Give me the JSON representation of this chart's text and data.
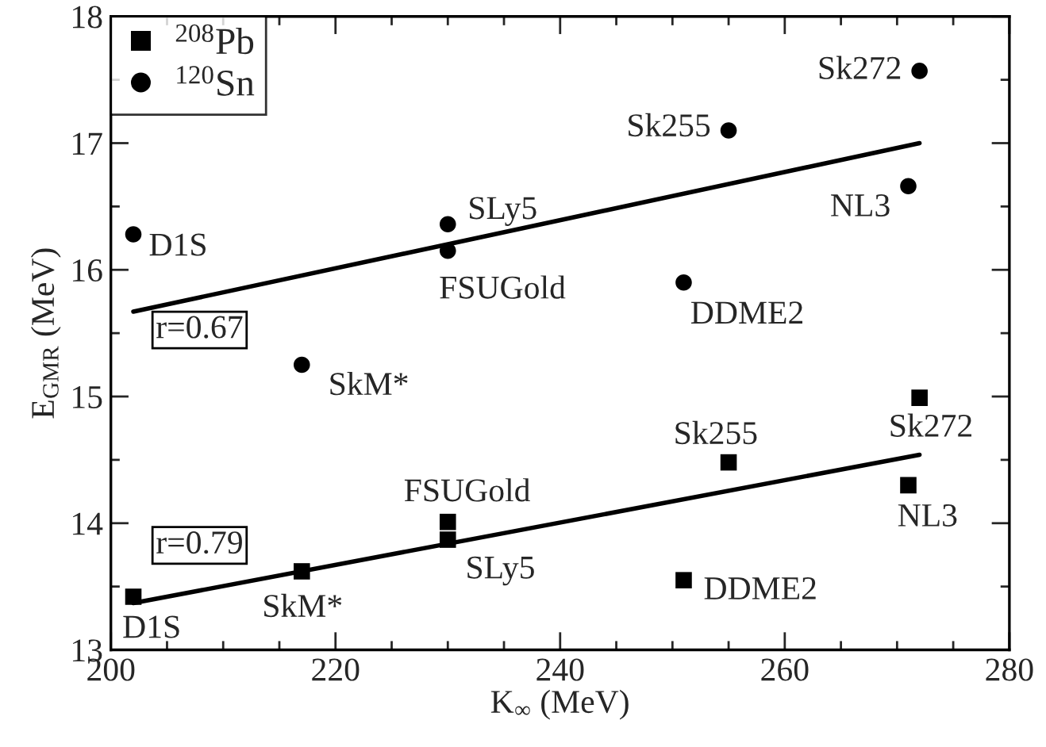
{
  "chart_data": {
    "type": "scatter",
    "xlabel": "K$_{∞}$ (MeV)",
    "ylabel": "E$_{GMR}$ (MeV)",
    "xlim": [
      200,
      280
    ],
    "ylim": [
      13,
      18
    ],
    "xticks": [
      200,
      {
        "value": 205,
        "label": null
      },
      {
        "value": 210,
        "label": null
      },
      {
        "value": 215,
        "label": null
      },
      220,
      {
        "value": 225,
        "label": null
      },
      {
        "value": 230,
        "label": null
      },
      {
        "value": 235,
        "label": null
      },
      240,
      {
        "value": 245,
        "label": null
      },
      {
        "value": 250,
        "label": null
      },
      {
        "value": 255,
        "label": null
      },
      260,
      {
        "value": 265,
        "label": null
      },
      {
        "value": 270,
        "label": null
      },
      {
        "value": 275,
        "label": null
      },
      280
    ],
    "yticks": [
      13,
      {
        "value": 13.5,
        "label": null
      },
      14,
      {
        "value": 14.5,
        "label": null
      },
      15,
      {
        "value": 15.5,
        "label": null
      },
      16,
      {
        "value": 16.5,
        "label": null
      },
      17,
      {
        "value": 17.5,
        "label": null
      },
      18
    ],
    "grid": false,
    "legend": "top left",
    "series": [
      {
        "name": "$^{208}$Pb",
        "color": "#000000",
        "marker": "square",
        "x": [
          202,
          217,
          230,
          230,
          255,
          251,
          271,
          272
        ],
        "values": [
          13.42,
          13.62,
          14.01,
          13.87,
          14.48,
          13.55,
          14.3,
          14.99
        ]
      },
      {
        "name": "$^{120}$Sn",
        "color": "#000000",
        "marker": "circle",
        "x": [
          202,
          217,
          230,
          230,
          255,
          251,
          271,
          272
        ],
        "values": [
          16.28,
          15.25,
          16.36,
          16.15,
          17.1,
          15.9,
          16.66,
          17.57
        ]
      },
      {
        "type": "line",
        "color": "#000000",
        "marker": "none",
        "x": [
          202,
          272
        ],
        "values": [
          13.37,
          14.54
        ]
      },
      {
        "type": "line",
        "color": "#000000",
        "marker": "none",
        "x": [
          202,
          272
        ],
        "values": [
          15.67,
          17.0
        ]
      }
    ],
    "annotations": [
      {
        "text": "D1S",
        "x": 202,
        "y": 13.42
      },
      {
        "text": "SkM*",
        "x": 217,
        "y": 13.62
      },
      {
        "text": "FSUGold",
        "x": 230,
        "y": 14.01
      },
      {
        "text": "SLy5",
        "x": 230,
        "y": 13.87
      },
      {
        "text": "Sk255",
        "x": 255,
        "y": 14.48
      },
      {
        "text": "DDME2",
        "x": 251,
        "y": 13.55
      },
      {
        "text": "NL3",
        "x": 271,
        "y": 14.3
      },
      {
        "text": "Sk272",
        "x": 272,
        "y": 14.99
      },
      {
        "text": "D1S",
        "x": 202,
        "y": 16.28
      },
      {
        "text": "SkM*",
        "x": 217,
        "y": 15.25
      },
      {
        "text": "SLy5",
        "x": 230,
        "y": 16.36
      },
      {
        "text": "FSUGold",
        "x": 230,
        "y": 16.15
      },
      {
        "text": "Sk255",
        "x": 255,
        "y": 17.1
      },
      {
        "text": "DDME2",
        "x": 251,
        "y": 15.9
      },
      {
        "text": "NL3",
        "x": 271,
        "y": 16.66
      },
      {
        "text": "Sk272",
        "x": 272,
        "y": 17.57
      },
      "r=0.67",
      "r=0.79"
    ]
  }
}
